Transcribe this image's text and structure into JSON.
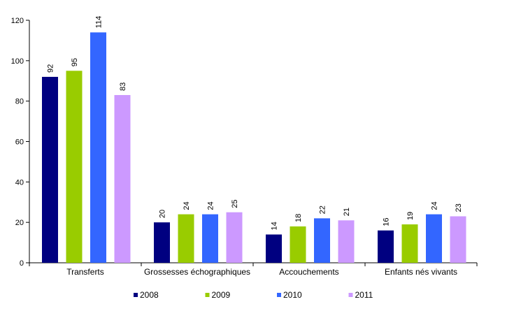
{
  "chart_data": {
    "type": "bar",
    "title": "",
    "xlabel": "",
    "ylabel": "",
    "categories": [
      "Transferts",
      "Grossesses échographiques",
      "Accouchements",
      "Enfants nés vivants"
    ],
    "series": [
      {
        "name": "2008",
        "color": "#000080",
        "values": [
          92,
          20,
          14,
          16
        ]
      },
      {
        "name": "2009",
        "color": "#99CC00",
        "values": [
          95,
          24,
          18,
          19
        ]
      },
      {
        "name": "2010",
        "color": "#3366FF",
        "values": [
          114,
          24,
          22,
          24
        ]
      },
      {
        "name": "2011",
        "color": "#CC99FF",
        "values": [
          83,
          25,
          21,
          23
        ]
      }
    ],
    "ylim": [
      0,
      120
    ],
    "yticks": [
      "0",
      "20",
      "40",
      "60",
      "80",
      "100",
      "120"
    ],
    "grid": false,
    "legend": "bottom",
    "data_labels": true,
    "data_label_rotation": "vertical"
  }
}
